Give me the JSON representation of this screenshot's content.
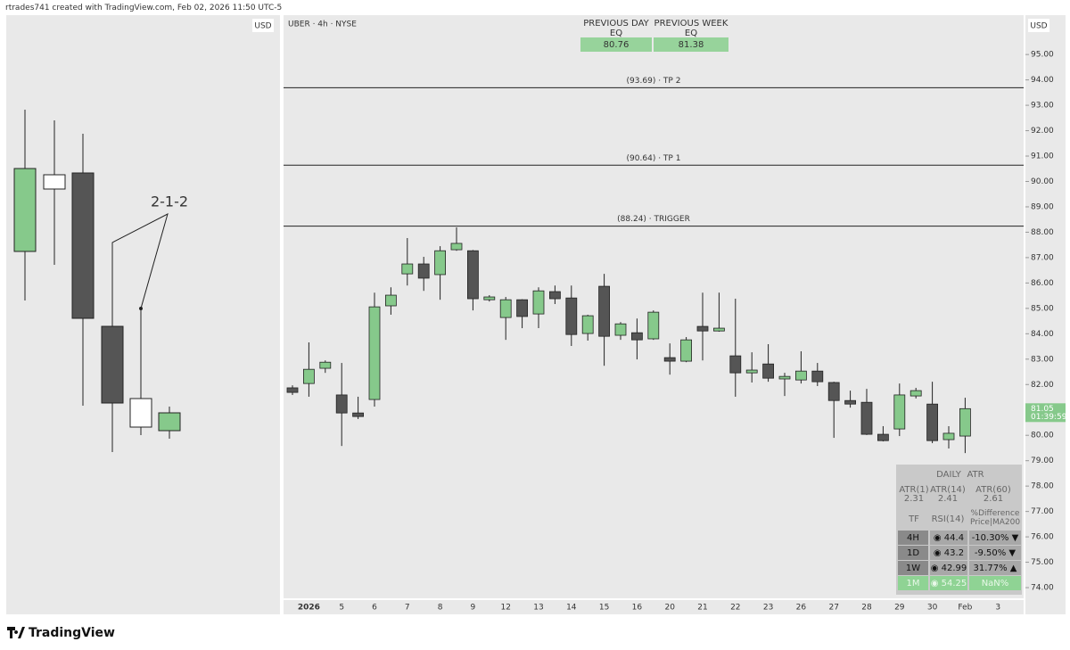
{
  "header": {
    "caption": "rtrades741 created with TradingView.com, Feb 02, 2026 11:50 UTC-5",
    "left_currency": "USD"
  },
  "annotation": "2-1-2",
  "chart_data": {
    "type": "candlestick",
    "title": "UBER · 4h · NYSE",
    "currency": "USD",
    "categories": [
      null,
      "2026",
      null,
      "5",
      null,
      "6",
      null,
      "7",
      null,
      "8",
      null,
      "9",
      null,
      "12",
      null,
      "13",
      null,
      "14",
      null,
      "15",
      null,
      "16",
      null,
      "20",
      null,
      "21",
      null,
      "22",
      null,
      "23",
      null,
      "26",
      null,
      "27",
      null,
      "28",
      null,
      "29",
      null,
      "30",
      null,
      "Feb",
      null,
      "3"
    ],
    "open": [
      81.87,
      82.04,
      82.64,
      81.59,
      80.88,
      81.41,
      85.1,
      86.36,
      86.75,
      86.33,
      87.31,
      87.27,
      85.34,
      84.64,
      85.34,
      84.78,
      85.66,
      85.41,
      84.01,
      85.87,
      83.94,
      84.04,
      83.8,
      83.06,
      82.92,
      84.29,
      84.11,
      83.13,
      82.46,
      82.81,
      82.22,
      82.18,
      82.53,
      82.08,
      81.37,
      81.3,
      80.04,
      80.25,
      81.55,
      81.23,
      79.83,
      79.97,
      null,
      null
    ],
    "high": [
      81.97,
      83.66,
      82.95,
      82.85,
      81.52,
      85.62,
      85.83,
      87.77,
      87.03,
      87.45,
      88.19,
      87.3,
      85.52,
      85.45,
      85.36,
      85.83,
      85.9,
      85.9,
      84.75,
      86.36,
      84.46,
      84.6,
      84.92,
      83.62,
      83.87,
      85.62,
      85.62,
      85.38,
      83.27,
      83.59,
      82.46,
      83.31,
      82.85,
      82.11,
      81.76,
      81.83,
      80.36,
      82.04,
      81.87,
      82.11,
      80.36,
      81.48,
      null,
      null
    ],
    "low": [
      81.59,
      81.52,
      82.46,
      79.58,
      80.64,
      81.13,
      84.75,
      85.9,
      85.69,
      85.34,
      87.27,
      84.92,
      85.27,
      83.76,
      84.22,
      84.22,
      85.17,
      83.52,
      83.73,
      82.74,
      83.76,
      82.99,
      83.76,
      82.39,
      82.88,
      82.95,
      84.08,
      81.52,
      82.08,
      82.11,
      81.55,
      82.04,
      81.94,
      79.9,
      81.09,
      80.01,
      79.76,
      79.97,
      81.45,
      79.69,
      79.48,
      79.3,
      null,
      null
    ],
    "close": [
      81.69,
      82.6,
      82.88,
      80.88,
      80.74,
      85.06,
      85.52,
      86.75,
      86.19,
      87.27,
      87.56,
      85.38,
      85.45,
      85.34,
      84.68,
      85.69,
      85.38,
      83.97,
      84.71,
      83.9,
      84.39,
      83.76,
      84.85,
      82.92,
      83.76,
      84.11,
      84.22,
      82.46,
      82.57,
      82.25,
      82.32,
      82.53,
      82.11,
      81.37,
      81.23,
      80.04,
      79.79,
      81.59,
      81.76,
      79.79,
      80.08,
      81.05,
      null,
      null
    ],
    "up_color": "#86c98b",
    "down_color": "#555555",
    "ylim": [
      73.58,
      96.55
    ],
    "yticks": [
      {
        "value": 74,
        "label": "74.00"
      },
      {
        "value": 75,
        "label": "75.00"
      },
      {
        "value": 76,
        "label": "76.00"
      },
      {
        "value": 77,
        "label": "77.00"
      },
      {
        "value": 78,
        "label": "78.00"
      },
      {
        "value": 79,
        "label": "79.00"
      },
      {
        "value": 80,
        "label": "80.00"
      },
      {
        "value": 81,
        "label": "81.00"
      },
      {
        "value": 82,
        "label": "82.00"
      },
      {
        "value": 83,
        "label": "83.00"
      },
      {
        "value": 84,
        "label": "84.00"
      },
      {
        "value": 85,
        "label": "85.00"
      },
      {
        "value": 86,
        "label": "86.00"
      },
      {
        "value": 87,
        "label": "87.00"
      },
      {
        "value": 88,
        "label": "88.00"
      },
      {
        "value": 89,
        "label": "89.00"
      },
      {
        "value": 90,
        "label": "90.00"
      },
      {
        "value": 91,
        "label": "91.00"
      },
      {
        "value": 92,
        "label": "92.00"
      },
      {
        "value": 93,
        "label": "93.00"
      },
      {
        "value": 94,
        "label": "94.00"
      },
      {
        "value": 95,
        "label": "95.00"
      }
    ],
    "levels": [
      {
        "value": 93.69,
        "label": "(93.69) · TP 2"
      },
      {
        "value": 90.64,
        "label": "(90.64) · TP 1"
      },
      {
        "value": 88.24,
        "label": "(88.24) · TRIGGER"
      }
    ],
    "last_price": 81.05,
    "countdown": "01:39:59"
  },
  "eq_table": {
    "columns": [
      "PREVIOUS DAY EQ",
      "PREVIOUS WEEK EQ"
    ],
    "values": [
      "80.76",
      "81.38"
    ]
  },
  "atr_table": {
    "header": [
      "DAILY",
      "ATR"
    ],
    "atr": [
      {
        "label": "ATR(1)",
        "value": "2.31"
      },
      {
        "label": "ATR(14)",
        "value": "2.41"
      },
      {
        "label": "ATR(60)",
        "value": "2.61"
      }
    ],
    "columns": [
      "TF",
      "RSI(14)",
      "%Difference Price|MA200"
    ],
    "rows": [
      [
        "4H",
        "◉ 44.4",
        "-10.30% ▼"
      ],
      [
        "1D",
        "◉ 43.2",
        "-9.50% ▼"
      ],
      [
        "1W",
        "◉ 42.99",
        "31.77% ▲"
      ],
      [
        "1M",
        "◉ 54.25",
        "NaN%"
      ]
    ]
  },
  "footer": {
    "brand": "TradingView"
  }
}
